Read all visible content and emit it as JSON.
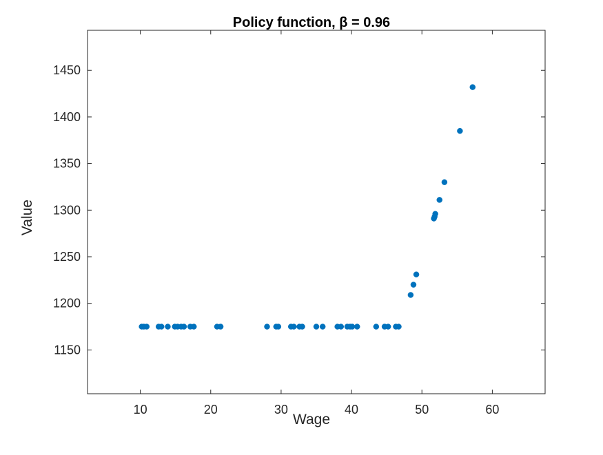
{
  "chart_data": {
    "type": "scatter",
    "title": "Policy function, β = 0.96",
    "xlabel": "Wage",
    "ylabel": "Value",
    "xlim": [
      2.5,
      67.5
    ],
    "ylim": [
      1103,
      1493
    ],
    "xticks": [
      "10",
      "20",
      "30",
      "40",
      "50",
      "60"
    ],
    "yticks": [
      "1150",
      "1200",
      "1250",
      "1300",
      "1350",
      "1400",
      "1450"
    ],
    "grid": false,
    "marker_color": "#0072BD",
    "series": [
      {
        "points": [
          [
            10.2,
            1175
          ],
          [
            10.5,
            1175
          ],
          [
            10.9,
            1175
          ],
          [
            12.6,
            1175
          ],
          [
            13.0,
            1175
          ],
          [
            13.9,
            1175
          ],
          [
            14.9,
            1175
          ],
          [
            15.3,
            1175
          ],
          [
            15.8,
            1175
          ],
          [
            16.2,
            1175
          ],
          [
            17.1,
            1175
          ],
          [
            17.6,
            1175
          ],
          [
            20.9,
            1175
          ],
          [
            21.4,
            1175
          ],
          [
            28.0,
            1175
          ],
          [
            29.3,
            1175
          ],
          [
            29.6,
            1175
          ],
          [
            31.4,
            1175
          ],
          [
            31.8,
            1175
          ],
          [
            32.6,
            1175
          ],
          [
            33.0,
            1175
          ],
          [
            35.0,
            1175
          ],
          [
            35.9,
            1175
          ],
          [
            38.0,
            1175
          ],
          [
            38.5,
            1175
          ],
          [
            39.4,
            1175
          ],
          [
            39.8,
            1175
          ],
          [
            40.1,
            1175
          ],
          [
            40.8,
            1175
          ],
          [
            43.5,
            1175
          ],
          [
            44.7,
            1175
          ],
          [
            45.2,
            1175
          ],
          [
            46.3,
            1175
          ],
          [
            46.7,
            1175
          ],
          [
            48.4,
            1209
          ],
          [
            48.8,
            1220
          ],
          [
            49.2,
            1231
          ],
          [
            51.7,
            1291
          ],
          [
            51.8,
            1293
          ],
          [
            51.9,
            1296
          ],
          [
            52.5,
            1311
          ],
          [
            53.2,
            1330
          ],
          [
            55.4,
            1385
          ],
          [
            57.2,
            1432
          ]
        ]
      }
    ]
  }
}
